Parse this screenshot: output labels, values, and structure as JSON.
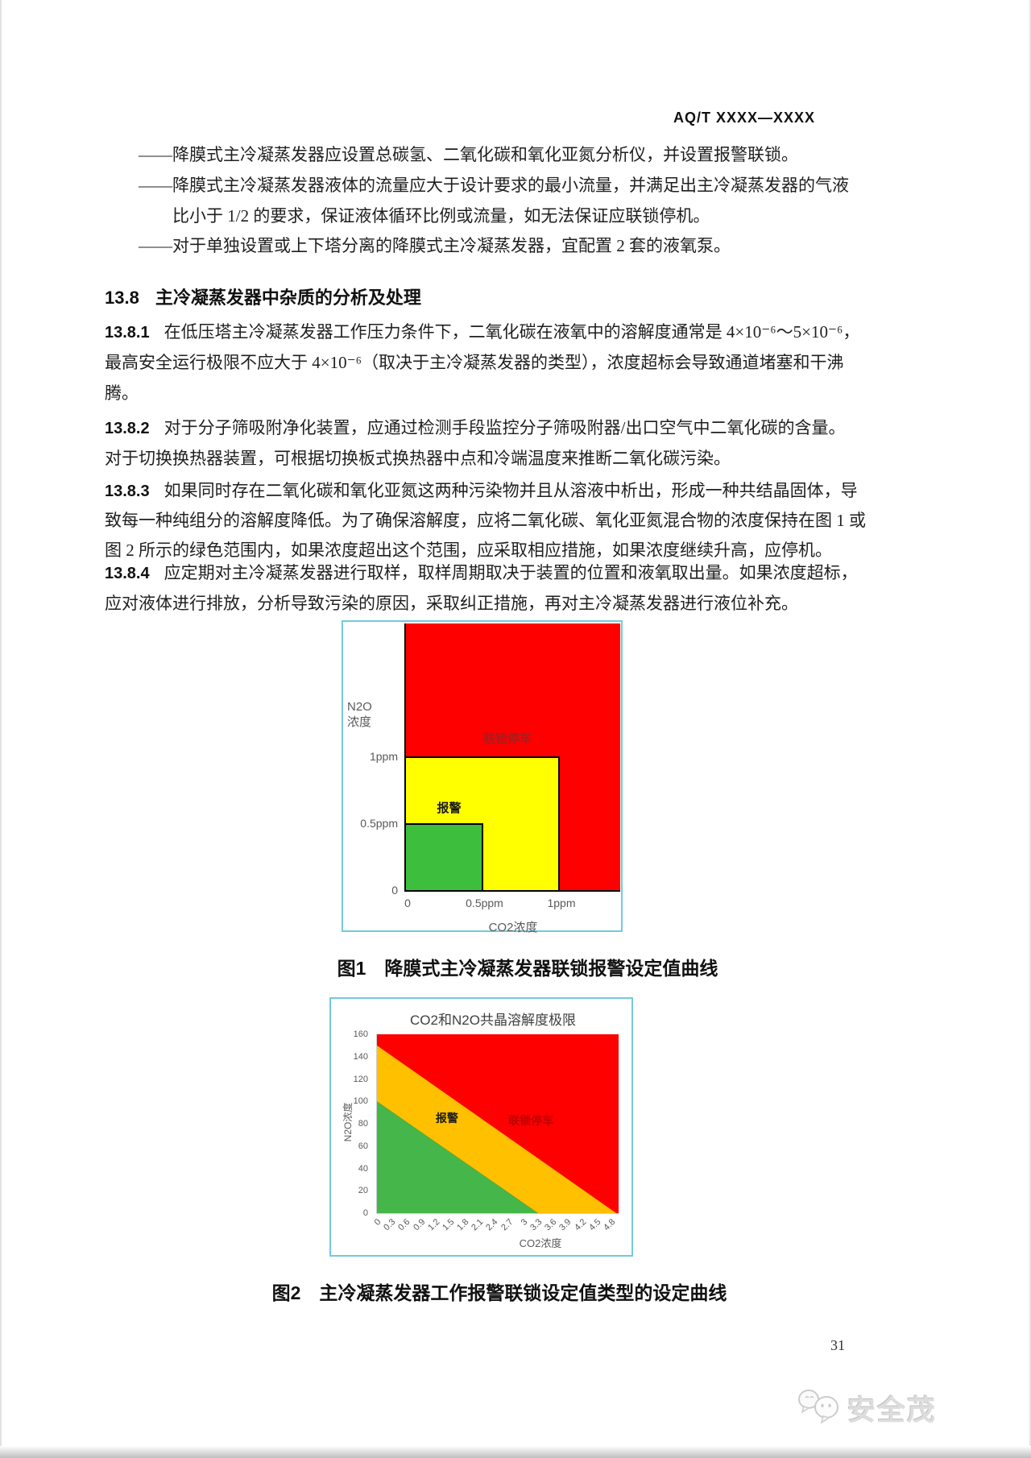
{
  "header": {
    "doc_code": "AQ/T XXXX—XXXX"
  },
  "body": {
    "dash_lines": {
      "l1": "——降膜式主冷凝蒸发器应设置总碳氢、二氧化碳和氧化亚氮分析仪，并设置报警联锁。",
      "l2": "——降膜式主冷凝蒸发器液体的流量应大于设计要求的最小流量，并满足出主冷凝蒸发器的气液",
      "l3": "比小于 1/2 的要求，保证液体循环比例或流量，如无法保证应联锁停机。",
      "l4": "——对于单独设置或上下塔分离的降膜式主冷凝蒸发器，宜配置 2 套的液氧泵。"
    },
    "section_heading": {
      "num": "13.8",
      "title": "主冷凝蒸发器中杂质的分析及处理"
    },
    "p1": {
      "num": "13.8.1",
      "l1": "在低压塔主冷凝蒸发器工作压力条件下，二氧化碳在液氧中的溶解度通常是 4×10⁻⁶～5×10⁻⁶，",
      "l2": "最高安全运行极限不应大于 4×10⁻⁶（取决于主冷凝蒸发器的类型），浓度超标会导致通道堵塞和干沸",
      "l3": "腾。"
    },
    "p2": {
      "num": "13.8.2",
      "l1": "对于分子筛吸附净化装置，应通过检测手段监控分子筛吸附器/出口空气中二氧化碳的含量。",
      "l2": "对于切换换热器装置，可根据切换板式换热器中点和冷端温度来推断二氧化碳污染。"
    },
    "p3": {
      "num": "13.8.3",
      "l1": "如果同时存在二氧化碳和氧化亚氮这两种污染物并且从溶液中析出，形成一种共结晶固体，导",
      "l2": "致每一种纯组分的溶解度降低。为了确保溶解度，应将二氧化碳、氧化亚氮混合物的浓度保持在图 1 或",
      "l3": "图 2 所示的绿色范围内，如果浓度超出这个范围，应采取相应措施，如果浓度继续升高，应停机。"
    },
    "p4": {
      "num": "13.8.4",
      "l1": "应定期对主冷凝蒸发器进行取样，取样周期取决于装置的位置和液氧取出量。如果浓度超标，",
      "l2": "应对液体进行排放，分析导致污染的原因，采取纠正措施，再对主冷凝蒸发器进行液位补充。"
    }
  },
  "figure1": {
    "caption": "图1　降膜式主冷凝蒸发器联锁报警设定值曲线",
    "y_axis_label_l1": "N2O",
    "y_axis_label_l2": "浓度",
    "x_axis_label": "CO2浓度",
    "border_color": "#72cade"
  },
  "figure2": {
    "caption": "图2　主冷凝蒸发器工作报警联锁设定值类型的设定曲线",
    "title": "CO2和N2O共晶溶解度极限",
    "y_axis_label": "N2O浓度",
    "x_axis_label": "CO2浓度",
    "border_color": "#72cade"
  },
  "chart_data": [
    {
      "type": "area",
      "figure": "图1",
      "title": "",
      "xlabel": "CO2浓度",
      "ylabel": "N2O浓度",
      "unit": "ppm",
      "xlim_ppm": [
        0,
        1.4
      ],
      "ylim_ppm": [
        0,
        2.0
      ],
      "x_ticks": [
        {
          "v": 0,
          "label": "0"
        },
        {
          "v": 0.5,
          "label": "0.5ppm"
        },
        {
          "v": 1,
          "label": "1ppm"
        }
      ],
      "y_ticks": [
        {
          "v": 1,
          "label": "1ppm"
        },
        {
          "v": 0.5,
          "label": "0.5ppm"
        },
        {
          "v": 0,
          "label": "0"
        }
      ],
      "regions": [
        {
          "id": "interlock-stop",
          "meaning": "联锁停车",
          "color": "#fe0000",
          "x_max_ppm": 1.4,
          "y_max_ppm": 2.0,
          "outline": false
        },
        {
          "id": "alarm",
          "meaning": "报警",
          "color": "#ffff00",
          "x_max_ppm": 1.0,
          "y_max_ppm": 1.0,
          "outline": true
        },
        {
          "id": "normal",
          "meaning": "绿色范围",
          "color": "#3dbe3d",
          "x_max_ppm": 0.5,
          "y_max_ppm": 0.5,
          "outline": true
        }
      ],
      "region_labels": [
        {
          "id": "interlock-stop",
          "text": "联锁停车",
          "x_ppm": 0.66,
          "y_ppm": 1.07,
          "color": "#a81d1d"
        },
        {
          "id": "alarm",
          "text": "报警",
          "x_ppm": 0.28,
          "y_ppm": 0.55,
          "color": "#1a1a1a"
        }
      ]
    },
    {
      "type": "area",
      "figure": "图2",
      "title": "CO2和N2O共晶溶解度极限",
      "xlabel": "CO2浓度",
      "ylabel": "N2O浓度",
      "xlim": [
        0,
        4.95
      ],
      "ylim": [
        0,
        160
      ],
      "x_ticks": [
        "0",
        "0.3",
        "0.6",
        "0.9",
        "1.2",
        "1.5",
        "1.8",
        "2.1",
        "2.4",
        "2.7",
        "3",
        "3.3",
        "3.6",
        "3.9",
        "4.2",
        "4.5",
        "4.8"
      ],
      "y_ticks": [
        "0",
        "20",
        "40",
        "60",
        "80",
        "100",
        "120",
        "140",
        "160"
      ],
      "regions": [
        {
          "id": "interlock-stop",
          "meaning": "联锁停车",
          "color": "#fe0000",
          "points": [
            [
              0,
              160
            ],
            [
              4.95,
              160
            ],
            [
              4.95,
              0
            ],
            [
              0,
              0
            ]
          ]
        },
        {
          "id": "alarm",
          "meaning": "报警",
          "color": "#ffc000",
          "points": [
            [
              0,
              150
            ],
            [
              4.9,
              0
            ],
            [
              3.3,
              0
            ],
            [
              0,
              100
            ]
          ]
        },
        {
          "id": "normal",
          "meaning": "绿色范围",
          "color": "#45b649",
          "points": [
            [
              0,
              100
            ],
            [
              3.3,
              0
            ],
            [
              0,
              0
            ]
          ]
        }
      ],
      "region_labels": [
        {
          "id": "alarm",
          "text": "报警",
          "x": 1.45,
          "y": 85,
          "color": "#1a1a1a"
        },
        {
          "id": "interlock-stop",
          "text": "联锁停车",
          "x": 3.17,
          "y": 83,
          "color": "#c00000"
        }
      ]
    }
  ],
  "footer": {
    "page_number": "31",
    "watermark_text": "安全茂"
  }
}
